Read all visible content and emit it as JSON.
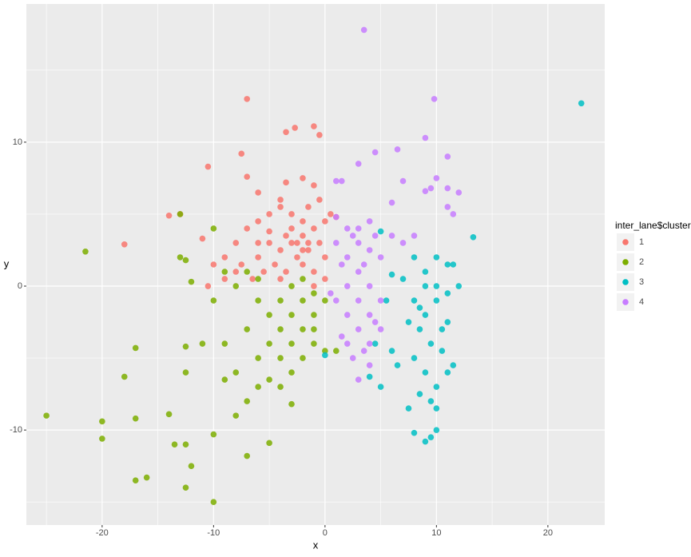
{
  "chart_data": {
    "type": "scatter",
    "x_label": "x",
    "y_label": "y",
    "legend_title": "inter_lane$cluster",
    "legend_position": "right",
    "xlim": [
      -26.8,
      25.1
    ],
    "ylim": [
      -16.6,
      19.6
    ],
    "xticks": [
      -20,
      -10,
      0,
      10,
      20
    ],
    "yticks": [
      -10,
      0,
      10
    ],
    "x_minor_grid": [
      -25,
      -15,
      -5,
      5,
      15
    ],
    "y_minor_grid": [
      -15,
      -5,
      5,
      15
    ],
    "grid": true,
    "series": [
      {
        "name": "1",
        "color": "#F8766D",
        "x": [
          -7,
          -18,
          -10.5,
          -14,
          -13,
          -3.5,
          -2.7,
          -1,
          -0.5,
          -7.5,
          -7,
          -6,
          -3.5,
          -2,
          -1,
          -4,
          -5,
          -6,
          -7,
          -8,
          -9,
          -10,
          -10.5,
          -11,
          -9,
          -8,
          -6,
          -5,
          -4,
          -3,
          -2,
          -1,
          0,
          0.5,
          1,
          -3,
          -2.5,
          -1.5,
          -0.5,
          0,
          -1,
          -2,
          -3.5,
          -4.5,
          -5.5,
          -6.5,
          -7.5,
          -4,
          -1,
          0,
          -2,
          -3,
          -4,
          -1.5,
          -0.5,
          -5,
          -6,
          -2.5,
          -3.5,
          -1.5,
          -2
        ],
        "values": [
          13,
          2.9,
          8.3,
          4.9,
          5,
          10.7,
          11,
          11.1,
          10.5,
          9.2,
          7.6,
          6.5,
          7.2,
          7.5,
          7,
          5.5,
          5,
          4.5,
          4,
          3,
          2,
          1.5,
          0,
          3.3,
          0.5,
          1,
          2,
          3,
          2.5,
          3,
          3.5,
          4,
          4.5,
          5,
          4.8,
          4,
          2,
          2.5,
          3,
          2,
          1,
          1.5,
          1,
          1.5,
          1,
          0.5,
          1.5,
          0.5,
          0,
          0.5,
          4.5,
          5,
          6,
          5.5,
          6,
          3.8,
          3,
          3,
          3.5,
          3,
          2.5
        ]
      },
      {
        "name": "2",
        "color": "#7CAE00",
        "x": [
          -21.5,
          -25,
          -20,
          -20,
          -18,
          -17,
          -17,
          -17,
          -16,
          -14,
          -13.5,
          -12.5,
          -12,
          -12.5,
          -10,
          -10,
          -7,
          -5,
          -12.5,
          -12.5,
          -13,
          -13,
          -12,
          -12.5,
          -10,
          -9,
          -8,
          -7,
          -7,
          -6,
          -6,
          -5,
          -5,
          -4,
          -4,
          -4,
          -3,
          -3,
          -3,
          -3,
          -2,
          -2,
          -2,
          -1,
          -1,
          -1,
          0,
          0,
          1,
          -8,
          -9,
          -10,
          -11,
          -9,
          -8,
          -6,
          -5,
          -4,
          -3,
          -6,
          -7,
          -2,
          -1
        ],
        "values": [
          2.4,
          -9,
          -10.6,
          -9.4,
          -6.3,
          -4.3,
          -9.2,
          -13.5,
          -13.3,
          -8.9,
          -11,
          -11,
          -12.5,
          -14,
          -15,
          -10.3,
          -11.8,
          -10.9,
          -6,
          -4.2,
          5,
          2,
          0.3,
          1.8,
          4,
          -4,
          -6,
          -8,
          -3,
          -5,
          -1,
          -2,
          -4,
          -1,
          -3,
          -5,
          0,
          -2,
          -4,
          -6,
          -1,
          -3,
          -5,
          -2,
          -4,
          -0.5,
          -1,
          -4.5,
          -4.5,
          0,
          1,
          -1,
          -4,
          -6.5,
          -9,
          -7,
          -6.5,
          -7,
          -8.2,
          0.5,
          1,
          0.5,
          -3
        ]
      },
      {
        "name": "3",
        "color": "#00BFC4",
        "x": [
          23,
          13.3,
          8,
          9,
          10,
          11,
          11.5,
          12,
          7,
          8,
          9,
          10,
          11,
          7.5,
          8.5,
          9.5,
          10.5,
          11.5,
          8,
          9,
          10,
          11,
          8.5,
          9.5,
          10,
          7.5,
          8,
          9,
          9.5,
          10,
          6,
          6.5,
          4,
          5,
          4.5,
          5.5,
          6,
          10,
          9,
          11,
          10.5,
          8.5,
          5,
          0
        ],
        "values": [
          12.7,
          3.4,
          2,
          1,
          2,
          1.5,
          1.5,
          0,
          0.5,
          -1,
          -2,
          -1,
          -0.5,
          -2.5,
          -3,
          -4,
          -3,
          -5.5,
          -5,
          -6,
          -7,
          -6,
          -7.5,
          -8,
          -8.5,
          -8.5,
          -10.2,
          -10.8,
          -10.5,
          -10,
          -4.5,
          -5.5,
          -6.3,
          -7,
          -4,
          -1,
          0.8,
          0,
          0,
          -2.5,
          -4.5,
          -1.5,
          3.8,
          -4.8
        ]
      },
      {
        "name": "4",
        "color": "#C77CFF",
        "x": [
          3.5,
          9.8,
          4.5,
          6.5,
          9,
          11,
          3,
          10,
          11,
          12,
          9,
          9.5,
          7,
          1,
          1.5,
          6,
          11,
          11.5,
          7,
          8,
          6,
          1,
          2,
          3,
          4,
          5,
          2,
          3,
          4,
          5,
          2,
          3,
          4,
          5,
          2,
          3,
          4,
          1,
          1.5,
          2.5,
          3,
          4,
          4.5,
          3.5,
          4.5,
          2.5,
          1.5,
          0.5,
          1,
          3,
          4,
          2,
          3.5
        ],
        "values": [
          17.8,
          13,
          9.3,
          9.5,
          10.3,
          9,
          8.5,
          7.5,
          6.8,
          6.5,
          6.6,
          6.8,
          7.3,
          7.3,
          7.3,
          5.8,
          5.5,
          5,
          3,
          3.5,
          3.5,
          4.8,
          4,
          3,
          2.5,
          2,
          2,
          1,
          0,
          -1,
          0,
          -1,
          -2,
          -3,
          -2,
          -3,
          -4,
          -1,
          -3.5,
          -5,
          -6.5,
          -5.5,
          -2.5,
          1.5,
          3.5,
          3.5,
          1.5,
          -0.5,
          3,
          4,
          4.5,
          -4,
          -4.5
        ]
      }
    ]
  }
}
